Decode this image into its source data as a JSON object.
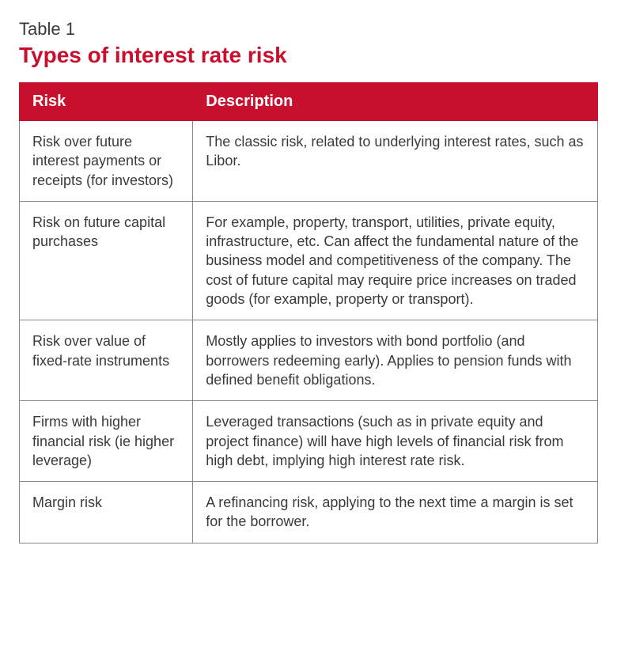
{
  "table_label": "Table 1",
  "table_title": "Types of interest rate risk",
  "columns": [
    "Risk",
    "Description"
  ],
  "rows": [
    {
      "risk": "Risk over future interest payments or receipts (for investors)",
      "description": "The classic risk, related to underlying interest rates, such as Libor."
    },
    {
      "risk": "Risk on future capital purchases",
      "description": "For example, property, transport, utilities, private equity, infrastructure, etc. Can affect the fundamental nature of the business model and competitiveness of the company. The cost of future capital may require price increases on traded goods (for example, property or transport)."
    },
    {
      "risk": "Risk over value of fixed-rate instruments",
      "description": "Mostly applies to investors with bond portfolio (and borrowers redeeming early). Applies to pension funds with defined benefit obligations."
    },
    {
      "risk": "Firms with higher financial risk (ie higher leverage)",
      "description": "Leveraged transactions (such as in private equity and project finance) will have high levels of financial risk from high debt, implying high interest rate risk."
    },
    {
      "risk": "Margin risk",
      "description": "A refinancing risk, applying to the next time a margin is set for the borrower."
    }
  ],
  "styles": {
    "header_bg": "#c8102e",
    "header_text_color": "#ffffff",
    "title_color": "#c8102e",
    "label_color": "#3a3a3a",
    "cell_text_color": "#3a3a3a",
    "border_color": "#888888",
    "background_color": "#ffffff",
    "label_fontsize": 22,
    "title_fontsize": 28,
    "header_fontsize": 20,
    "cell_fontsize": 18,
    "col1_width_pct": 30
  }
}
